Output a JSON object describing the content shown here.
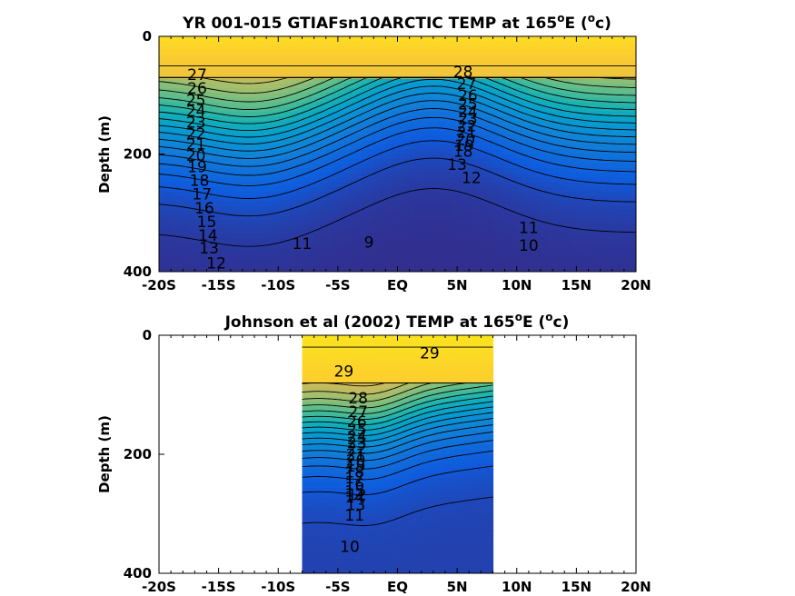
{
  "chart_data": [
    {
      "type": "heatmap",
      "title_main": "YR 001-015 GTIAFsn10ARCTIC TEMP at 165",
      "title_sup": "o",
      "title_unit_pre": "E (",
      "title_unit_sup": "o",
      "title_unit_post": "c)",
      "ylabel": "Depth (m)",
      "xlim": [
        -20,
        20
      ],
      "ylim": [
        0,
        400
      ],
      "y_reversed": true,
      "x_ticks": [
        -20,
        -15,
        -10,
        -5,
        0,
        5,
        10,
        15,
        20
      ],
      "x_tick_labels": [
        "-20S",
        "-15S",
        "-10S",
        "-5S",
        "EQ",
        "5N",
        "10N",
        "15N",
        "20N"
      ],
      "y_ticks": [
        0,
        200,
        400
      ],
      "y_tick_labels": [
        "0",
        "200",
        "400"
      ],
      "data_extent_x": [
        -20,
        20
      ],
      "colormap": "parula",
      "color_range": [
        8,
        30
      ],
      "contour_labels": [
        {
          "text": "28",
          "x": 5.5,
          "y": 60
        },
        {
          "text": "27",
          "x": 5.8,
          "y": 80
        },
        {
          "text": "26",
          "x": 5.9,
          "y": 100
        },
        {
          "text": "25",
          "x": 5.9,
          "y": 115
        },
        {
          "text": "24",
          "x": 5.9,
          "y": 128
        },
        {
          "text": "23",
          "x": 5.9,
          "y": 140
        },
        {
          "text": "22",
          "x": 5.8,
          "y": 152
        },
        {
          "text": "21",
          "x": 5.8,
          "y": 163
        },
        {
          "text": "20",
          "x": 5.7,
          "y": 175
        },
        {
          "text": "19",
          "x": 5.6,
          "y": 185
        },
        {
          "text": "18",
          "x": 5.5,
          "y": 195
        },
        {
          "text": "27",
          "x": -16.8,
          "y": 65
        },
        {
          "text": "26",
          "x": -16.8,
          "y": 88
        },
        {
          "text": "25",
          "x": -16.9,
          "y": 108
        },
        {
          "text": "24",
          "x": -16.9,
          "y": 127
        },
        {
          "text": "23",
          "x": -16.9,
          "y": 146
        },
        {
          "text": "22",
          "x": -16.9,
          "y": 165
        },
        {
          "text": "21",
          "x": -16.9,
          "y": 183
        },
        {
          "text": "20",
          "x": -16.9,
          "y": 202
        },
        {
          "text": "19",
          "x": -16.8,
          "y": 222
        },
        {
          "text": "18",
          "x": -16.6,
          "y": 245
        },
        {
          "text": "17",
          "x": -16.4,
          "y": 268
        },
        {
          "text": "16",
          "x": -16.2,
          "y": 292
        },
        {
          "text": "15",
          "x": -16.0,
          "y": 315
        },
        {
          "text": "14",
          "x": -15.9,
          "y": 338
        },
        {
          "text": "13",
          "x": -15.8,
          "y": 360
        },
        {
          "text": "12",
          "x": -15.2,
          "y": 385
        },
        {
          "text": "13",
          "x": 5.0,
          "y": 218
        },
        {
          "text": "12",
          "x": 6.2,
          "y": 240
        },
        {
          "text": "11",
          "x": -8.0,
          "y": 352
        },
        {
          "text": "9",
          "x": -2.4,
          "y": 350
        },
        {
          "text": "11",
          "x": 11.0,
          "y": 325
        },
        {
          "text": "10",
          "x": 11.0,
          "y": 355
        }
      ],
      "contour_levels": [
        9,
        10,
        11,
        12,
        13,
        14,
        15,
        16,
        17,
        18,
        19,
        20,
        21,
        22,
        23,
        24,
        25,
        26,
        27,
        28
      ]
    },
    {
      "type": "heatmap",
      "title_main": "Johnson et al (2002) TEMP at 165",
      "title_sup": "o",
      "title_unit_pre": "E (",
      "title_unit_sup": "o",
      "title_unit_post": "c)",
      "ylabel": "Depth (m)",
      "xlim": [
        -20,
        20
      ],
      "ylim": [
        0,
        400
      ],
      "y_reversed": true,
      "x_ticks": [
        -20,
        -15,
        -10,
        -5,
        0,
        5,
        10,
        15,
        20
      ],
      "x_tick_labels": [
        "-20S",
        "-15S",
        "-10S",
        "-5S",
        "EQ",
        "5N",
        "10N",
        "15N",
        "20N"
      ],
      "y_ticks": [
        0,
        200,
        400
      ],
      "y_tick_labels": [
        "0",
        "200",
        "400"
      ],
      "data_extent_x": [
        -8,
        8
      ],
      "colormap": "parula",
      "color_range": [
        8,
        30
      ],
      "contour_labels": [
        {
          "text": "29",
          "x": -4.5,
          "y": 60
        },
        {
          "text": "29",
          "x": 2.7,
          "y": 30
        },
        {
          "text": "28",
          "x": -3.3,
          "y": 105
        },
        {
          "text": "27",
          "x": -3.3,
          "y": 128
        },
        {
          "text": "26",
          "x": -3.4,
          "y": 145
        },
        {
          "text": "25",
          "x": -3.4,
          "y": 158
        },
        {
          "text": "24",
          "x": -3.4,
          "y": 170
        },
        {
          "text": "23",
          "x": -3.4,
          "y": 180
        },
        {
          "text": "22",
          "x": -3.4,
          "y": 190
        },
        {
          "text": "21",
          "x": -3.5,
          "y": 200
        },
        {
          "text": "20",
          "x": -3.5,
          "y": 210
        },
        {
          "text": "19",
          "x": -3.5,
          "y": 220
        },
        {
          "text": "18",
          "x": -3.6,
          "y": 230
        },
        {
          "text": "17",
          "x": -3.6,
          "y": 240
        },
        {
          "text": "16",
          "x": -3.6,
          "y": 250
        },
        {
          "text": "15",
          "x": -3.6,
          "y": 262
        },
        {
          "text": "14",
          "x": -3.6,
          "y": 272
        },
        {
          "text": "13",
          "x": -3.5,
          "y": 285
        },
        {
          "text": "12",
          "x": -3.4,
          "y": 268
        },
        {
          "text": "11",
          "x": -3.6,
          "y": 302
        },
        {
          "text": "10",
          "x": -4.0,
          "y": 355
        }
      ],
      "contour_levels": [
        10,
        11,
        12,
        13,
        14,
        15,
        16,
        17,
        18,
        19,
        20,
        21,
        22,
        23,
        24,
        25,
        26,
        27,
        28,
        29
      ]
    }
  ]
}
